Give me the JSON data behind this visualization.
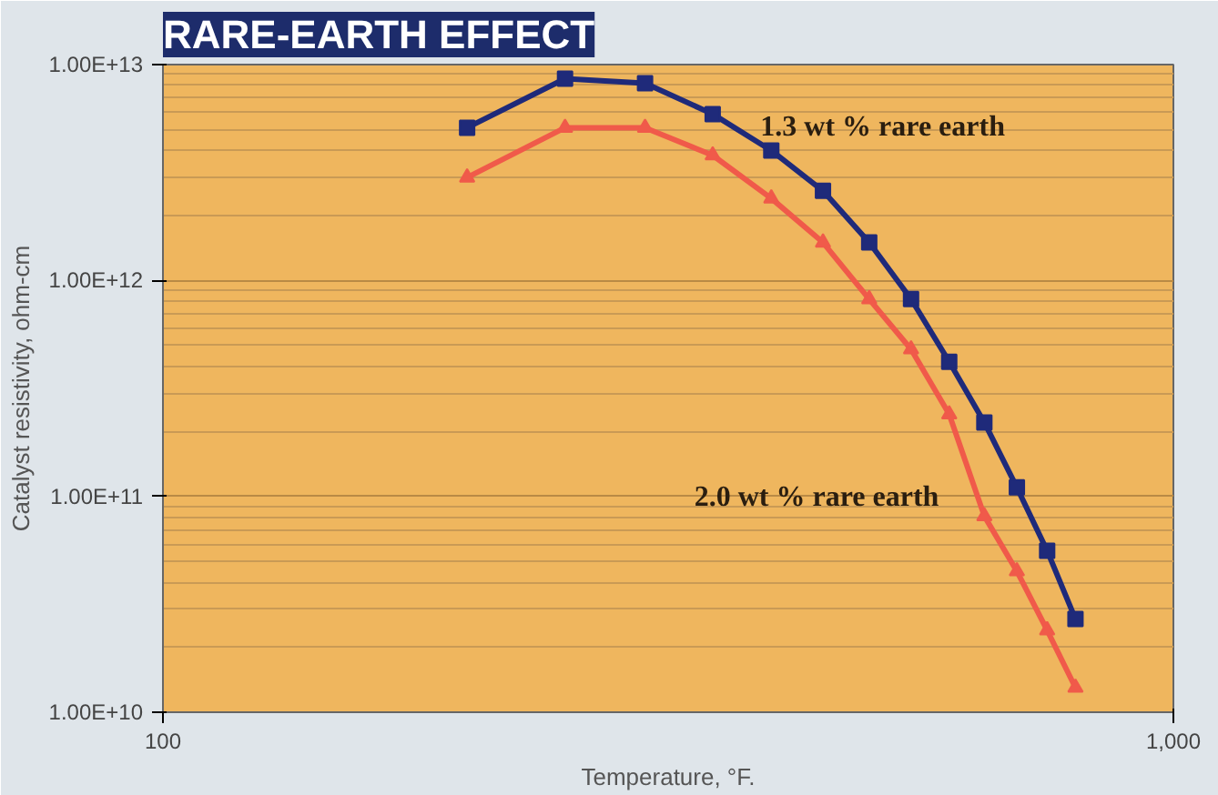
{
  "chart_data": {
    "type": "line",
    "title": "RARE-EARTH EFFECT",
    "xlabel": "Temperature, °F.",
    "ylabel": "Catalyst resistivity, ohm-cm",
    "x": [
      200,
      250,
      300,
      350,
      400,
      450,
      500,
      550,
      600,
      650,
      700,
      750,
      800
    ],
    "series": [
      {
        "name": "1.3 wt % rare earth",
        "color": "#1f2a7a",
        "marker": "square",
        "values": [
          5100000000000.0,
          8600000000000.0,
          8200000000000.0,
          5900000000000.0,
          4000000000000.0,
          2600000000000.0,
          1500000000000.0,
          820000000000.0,
          420000000000.0,
          220000000000.0,
          110000000000.0,
          56000000000.0,
          27000000000.0
        ]
      },
      {
        "name": "2.0 wt % rare earth",
        "color": "#f05a4a",
        "marker": "triangle",
        "values": [
          3000000000000.0,
          5100000000000.0,
          5100000000000.0,
          3800000000000.0,
          2400000000000.0,
          1500000000000.0,
          820000000000.0,
          480000000000.0,
          240000000000.0,
          81000000000.0,
          45000000000.0,
          24000000000.0,
          13000000000.0
        ]
      }
    ],
    "log": "xy",
    "xlim": [
      100,
      1000
    ],
    "xticks": [
      {
        "value": 100,
        "label": "100"
      },
      {
        "value": 1000,
        "label": "1,000"
      }
    ],
    "ylim": [
      10000000000.0,
      10000000000000.0
    ],
    "yticks": [
      {
        "value": 10000000000.0,
        "label": "1.00E+10"
      },
      {
        "value": 100000000000.0,
        "label": "1.00E+11"
      },
      {
        "value": 1000000000000.0,
        "label": "1.00E+12"
      },
      {
        "value": 10000000000000.0,
        "label": "1.00E+13"
      }
    ],
    "grid": "y",
    "line_style": "solid"
  }
}
